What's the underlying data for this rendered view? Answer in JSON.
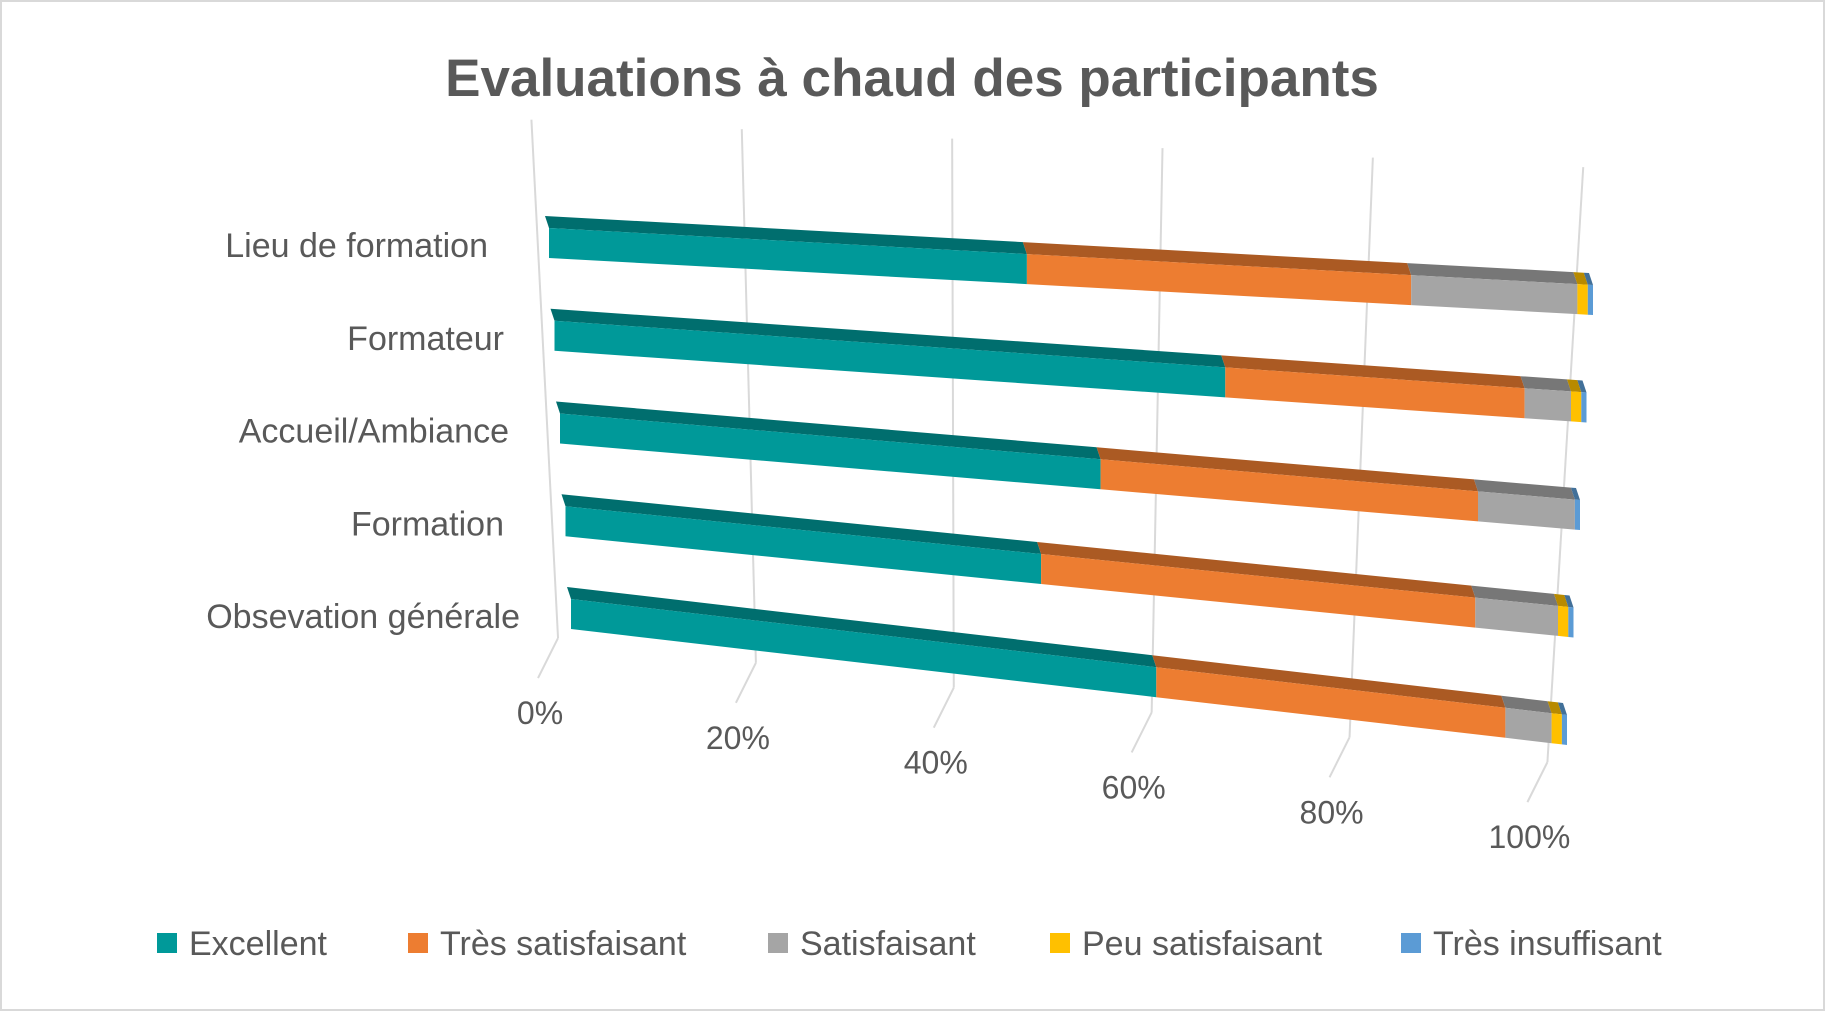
{
  "chart_data": {
    "type": "bar",
    "orientation": "horizontal",
    "stacking": "percent",
    "style": "3d",
    "title": "Evaluations à chaud des participants",
    "categories": [
      "Lieu de formation",
      "Formateur",
      "Accueil/Ambiance",
      "Formation",
      "Obsevation générale"
    ],
    "series": [
      {
        "name": "Excellent",
        "color": "#009999",
        "values": [
          46,
          65,
          53,
          46,
          57
        ]
      },
      {
        "name": "Très satisfaisant",
        "color": "#ED7D31",
        "values": [
          37,
          29,
          37,
          42,
          34
        ]
      },
      {
        "name": "Satisfaisant",
        "color": "#A5A5A5",
        "values": [
          16,
          4.5,
          9.5,
          8,
          4.5
        ]
      },
      {
        "name": "Peu satisfaisant",
        "color": "#FFC000",
        "values": [
          1,
          1,
          0,
          1,
          1
        ]
      },
      {
        "name": "Très insuffisant",
        "color": "#5B9BD5",
        "values": [
          0.5,
          0.5,
          0.5,
          0.5,
          0.5
        ]
      }
    ],
    "x_ticks": [
      "0%",
      "20%",
      "40%",
      "60%",
      "80%",
      "100%"
    ],
    "xlim": [
      0,
      100
    ],
    "grid": true,
    "legend": "bottom"
  }
}
